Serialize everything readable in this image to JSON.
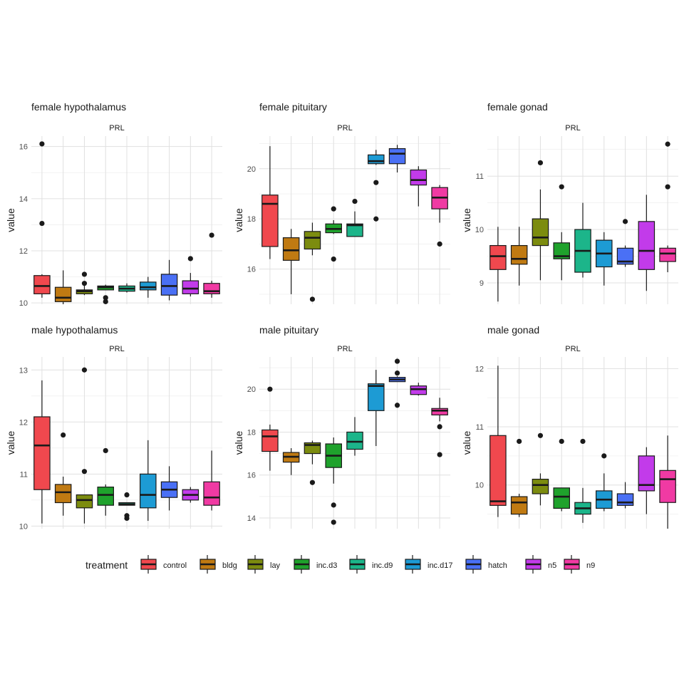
{
  "legend": {
    "title": "treatment",
    "entries": [
      {
        "label": "control",
        "color": "#F0484E"
      },
      {
        "label": "bldg",
        "color": "#C07A12"
      },
      {
        "label": "lay",
        "color": "#7C8C0F"
      },
      {
        "label": "inc.d3",
        "color": "#1FA22C"
      },
      {
        "label": "inc.d9",
        "color": "#1CB58A"
      },
      {
        "label": "inc.d17",
        "color": "#1D9BD4"
      },
      {
        "label": "hatch",
        "color": "#4A70F5"
      },
      {
        "label": "n5",
        "color": "#C23BEA"
      },
      {
        "label": "n9",
        "color": "#F03AA3"
      }
    ]
  },
  "chart_data": [
    {
      "type": "boxplot",
      "title": "female hypothalamus",
      "strip": "PRL",
      "ylabel": "value",
      "ylim": [
        9.95,
        16.4
      ],
      "yticks": [
        10,
        12,
        14,
        16
      ],
      "boxes": [
        {
          "category": "control",
          "min": 10.2,
          "q1": 10.35,
          "median": 10.65,
          "q3": 11.05,
          "max": 11.1,
          "outliers": [
            13.05,
            16.1
          ]
        },
        {
          "category": "bldg",
          "min": 9.95,
          "q1": 10.05,
          "median": 10.2,
          "q3": 10.6,
          "max": 11.25,
          "outliers": []
        },
        {
          "category": "lay",
          "min": 10.3,
          "q1": 10.35,
          "median": 10.45,
          "q3": 10.5,
          "max": 10.7,
          "outliers": [
            11.1,
            10.75
          ]
        },
        {
          "category": "inc.d3",
          "min": 10.5,
          "q1": 10.5,
          "median": 10.6,
          "q3": 10.65,
          "max": 10.7,
          "outliers": [
            10.2,
            10.05
          ]
        },
        {
          "category": "inc.d9",
          "min": 10.4,
          "q1": 10.45,
          "median": 10.55,
          "q3": 10.65,
          "max": 10.75,
          "outliers": []
        },
        {
          "category": "inc.d17",
          "min": 10.2,
          "q1": 10.5,
          "median": 10.6,
          "q3": 10.8,
          "max": 11.0,
          "outliers": []
        },
        {
          "category": "hatch",
          "min": 10.1,
          "q1": 10.3,
          "median": 10.65,
          "q3": 11.1,
          "max": 11.65,
          "outliers": []
        },
        {
          "category": "n5",
          "min": 10.25,
          "q1": 10.35,
          "median": 10.55,
          "q3": 10.85,
          "max": 11.15,
          "outliers": [
            11.7
          ]
        },
        {
          "category": "n9",
          "min": 10.2,
          "q1": 10.35,
          "median": 10.45,
          "q3": 10.75,
          "max": 10.85,
          "outliers": [
            12.6
          ]
        }
      ]
    },
    {
      "type": "boxplot",
      "title": "female pituitary",
      "strip": "PRL",
      "ylabel": "value",
      "ylim": [
        14.6,
        21.3
      ],
      "yticks": [
        16,
        18,
        20
      ],
      "boxes": [
        {
          "category": "control",
          "min": 16.4,
          "q1": 16.9,
          "median": 18.6,
          "q3": 18.95,
          "max": 20.9,
          "outliers": []
        },
        {
          "category": "bldg",
          "min": 15.0,
          "q1": 16.35,
          "median": 16.75,
          "q3": 17.25,
          "max": 17.6,
          "outliers": []
        },
        {
          "category": "lay",
          "min": 16.55,
          "q1": 16.8,
          "median": 17.25,
          "q3": 17.5,
          "max": 17.85,
          "outliers": [
            14.8
          ]
        },
        {
          "category": "inc.d3",
          "min": 17.4,
          "q1": 17.45,
          "median": 17.6,
          "q3": 17.8,
          "max": 17.95,
          "outliers": [
            18.4,
            16.4
          ]
        },
        {
          "category": "inc.d9",
          "min": 17.3,
          "q1": 17.3,
          "median": 17.75,
          "q3": 17.8,
          "max": 18.3,
          "outliers": [
            18.7
          ]
        },
        {
          "category": "inc.d17",
          "min": 20.15,
          "q1": 20.2,
          "median": 20.3,
          "q3": 20.55,
          "max": 20.75,
          "outliers": [
            19.45,
            18.0
          ]
        },
        {
          "category": "hatch",
          "min": 19.85,
          "q1": 20.2,
          "median": 20.6,
          "q3": 20.8,
          "max": 20.95,
          "outliers": []
        },
        {
          "category": "n5",
          "min": 18.5,
          "q1": 19.35,
          "median": 19.55,
          "q3": 19.95,
          "max": 20.1,
          "outliers": []
        },
        {
          "category": "n9",
          "min": 17.85,
          "q1": 18.4,
          "median": 18.85,
          "q3": 19.25,
          "max": 19.35,
          "outliers": [
            17.0
          ]
        }
      ]
    },
    {
      "type": "boxplot",
      "title": "female gonad",
      "strip": "PRL",
      "ylabel": "value",
      "ylim": [
        8.6,
        11.75
      ],
      "yticks": [
        9,
        10,
        11
      ],
      "boxes": [
        {
          "category": "control",
          "min": 8.65,
          "q1": 9.25,
          "median": 9.5,
          "q3": 9.7,
          "max": 10.05,
          "outliers": []
        },
        {
          "category": "bldg",
          "min": 8.95,
          "q1": 9.35,
          "median": 9.45,
          "q3": 9.7,
          "max": 10.05,
          "outliers": []
        },
        {
          "category": "lay",
          "min": 9.05,
          "q1": 9.7,
          "median": 9.85,
          "q3": 10.2,
          "max": 10.75,
          "outliers": [
            11.25
          ]
        },
        {
          "category": "inc.d3",
          "min": 9.05,
          "q1": 9.45,
          "median": 9.5,
          "q3": 9.75,
          "max": 9.95,
          "outliers": [
            10.8
          ]
        },
        {
          "category": "inc.d9",
          "min": 9.1,
          "q1": 9.2,
          "median": 9.6,
          "q3": 10.0,
          "max": 10.5,
          "outliers": []
        },
        {
          "category": "inc.d17",
          "min": 8.95,
          "q1": 9.3,
          "median": 9.55,
          "q3": 9.8,
          "max": 9.95,
          "outliers": []
        },
        {
          "category": "hatch",
          "min": 9.3,
          "q1": 9.35,
          "median": 9.4,
          "q3": 9.65,
          "max": 9.7,
          "outliers": [
            10.15
          ]
        },
        {
          "category": "n5",
          "min": 8.85,
          "q1": 9.25,
          "median": 9.6,
          "q3": 10.15,
          "max": 10.65,
          "outliers": []
        },
        {
          "category": "n9",
          "min": 9.2,
          "q1": 9.4,
          "median": 9.55,
          "q3": 9.65,
          "max": 9.7,
          "outliers": [
            11.6,
            10.8
          ]
        }
      ]
    },
    {
      "type": "boxplot",
      "title": "male hypothalamus",
      "strip": "PRL",
      "ylabel": "value",
      "ylim": [
        9.95,
        13.25
      ],
      "yticks": [
        10,
        11,
        12,
        13
      ],
      "boxes": [
        {
          "category": "control",
          "min": 10.05,
          "q1": 10.7,
          "median": 11.55,
          "q3": 12.1,
          "max": 12.8,
          "outliers": []
        },
        {
          "category": "bldg",
          "min": 10.2,
          "q1": 10.45,
          "median": 10.65,
          "q3": 10.8,
          "max": 10.95,
          "outliers": [
            11.75
          ]
        },
        {
          "category": "lay",
          "min": 10.05,
          "q1": 10.35,
          "median": 10.5,
          "q3": 10.6,
          "max": 10.6,
          "outliers": [
            13.0,
            11.05
          ]
        },
        {
          "category": "inc.d3",
          "min": 10.2,
          "q1": 10.4,
          "median": 10.6,
          "q3": 10.75,
          "max": 10.8,
          "outliers": [
            11.45
          ]
        },
        {
          "category": "inc.d9",
          "min": 10.4,
          "q1": 10.4,
          "median": 10.42,
          "q3": 10.45,
          "max": 10.45,
          "outliers": [
            10.6,
            10.2,
            10.15
          ]
        },
        {
          "category": "inc.d17",
          "min": 10.1,
          "q1": 10.35,
          "median": 10.6,
          "q3": 11.0,
          "max": 11.65,
          "outliers": []
        },
        {
          "category": "hatch",
          "min": 10.3,
          "q1": 10.55,
          "median": 10.7,
          "q3": 10.85,
          "max": 11.15,
          "outliers": []
        },
        {
          "category": "n5",
          "min": 10.45,
          "q1": 10.5,
          "median": 10.6,
          "q3": 10.7,
          "max": 10.75,
          "outliers": []
        },
        {
          "category": "n9",
          "min": 10.3,
          "q1": 10.4,
          "median": 10.55,
          "q3": 10.85,
          "max": 11.45,
          "outliers": []
        }
      ]
    },
    {
      "type": "boxplot",
      "title": "male pituitary",
      "strip": "PRL",
      "ylabel": "value",
      "ylim": [
        13.5,
        21.5
      ],
      "yticks": [
        14,
        16,
        18,
        20
      ],
      "boxes": [
        {
          "category": "control",
          "min": 16.2,
          "q1": 17.1,
          "median": 17.8,
          "q3": 18.1,
          "max": 18.35,
          "outliers": [
            20.0
          ]
        },
        {
          "category": "bldg",
          "min": 16.0,
          "q1": 16.6,
          "median": 16.85,
          "q3": 17.05,
          "max": 17.25,
          "outliers": []
        },
        {
          "category": "lay",
          "min": 16.5,
          "q1": 17.0,
          "median": 17.4,
          "q3": 17.5,
          "max": 17.6,
          "outliers": [
            15.65
          ]
        },
        {
          "category": "inc.d3",
          "min": 15.6,
          "q1": 16.35,
          "median": 16.9,
          "q3": 17.45,
          "max": 17.75,
          "outliers": [
            14.6,
            13.8
          ]
        },
        {
          "category": "inc.d9",
          "min": 16.9,
          "q1": 17.2,
          "median": 17.55,
          "q3": 18.0,
          "max": 18.7,
          "outliers": []
        },
        {
          "category": "inc.d17",
          "min": 17.35,
          "q1": 19.0,
          "median": 20.15,
          "q3": 20.25,
          "max": 20.9,
          "outliers": []
        },
        {
          "category": "hatch",
          "min": 20.35,
          "q1": 20.35,
          "median": 20.45,
          "q3": 20.55,
          "max": 20.6,
          "outliers": [
            21.3,
            20.75,
            19.25
          ]
        },
        {
          "category": "n5",
          "min": 19.7,
          "q1": 19.75,
          "median": 20.0,
          "q3": 20.15,
          "max": 20.3,
          "outliers": []
        },
        {
          "category": "n9",
          "min": 18.5,
          "q1": 18.8,
          "median": 19.0,
          "q3": 19.1,
          "max": 19.6,
          "outliers": [
            18.25,
            16.95
          ]
        }
      ]
    },
    {
      "type": "boxplot",
      "title": "male gonad",
      "strip": "PRL",
      "ylabel": "value",
      "ylim": [
        9.25,
        12.2
      ],
      "yticks": [
        10,
        11,
        12
      ],
      "boxes": [
        {
          "category": "control",
          "min": 9.45,
          "q1": 9.65,
          "median": 9.72,
          "q3": 10.85,
          "max": 12.05,
          "outliers": []
        },
        {
          "category": "bldg",
          "min": 9.45,
          "q1": 9.5,
          "median": 9.7,
          "q3": 9.8,
          "max": 9.85,
          "outliers": [
            10.75
          ]
        },
        {
          "category": "lay",
          "min": 9.65,
          "q1": 9.85,
          "median": 10.0,
          "q3": 10.1,
          "max": 10.2,
          "outliers": [
            10.85
          ]
        },
        {
          "category": "inc.d3",
          "min": 9.55,
          "q1": 9.6,
          "median": 9.8,
          "q3": 9.95,
          "max": 9.95,
          "outliers": [
            10.75
          ]
        },
        {
          "category": "inc.d9",
          "min": 9.35,
          "q1": 9.5,
          "median": 9.6,
          "q3": 9.7,
          "max": 9.95,
          "outliers": [
            10.75
          ]
        },
        {
          "category": "inc.d17",
          "min": 9.55,
          "q1": 9.6,
          "median": 9.75,
          "q3": 9.9,
          "max": 10.2,
          "outliers": [
            10.5
          ]
        },
        {
          "category": "hatch",
          "min": 9.6,
          "q1": 9.65,
          "median": 9.7,
          "q3": 9.85,
          "max": 10.05,
          "outliers": []
        },
        {
          "category": "n5",
          "min": 9.5,
          "q1": 9.9,
          "median": 10.0,
          "q3": 10.5,
          "max": 10.65,
          "outliers": []
        },
        {
          "category": "n9",
          "min": 9.25,
          "q1": 9.7,
          "median": 10.1,
          "q3": 10.25,
          "max": 10.85,
          "outliers": []
        }
      ]
    }
  ]
}
